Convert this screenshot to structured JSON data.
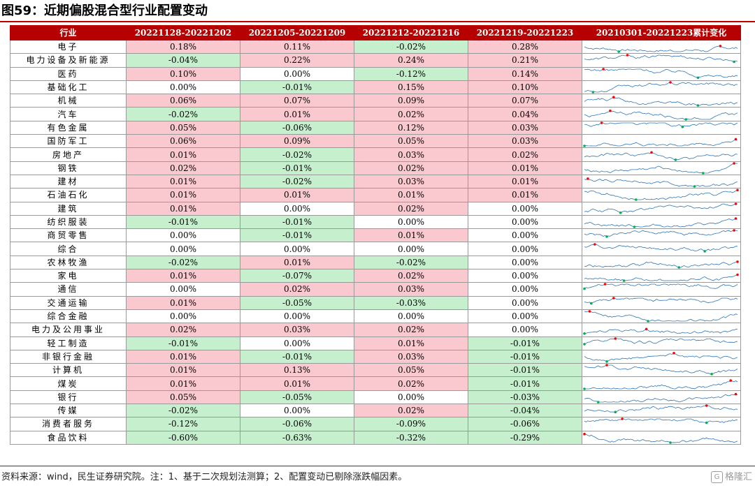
{
  "title": "图59：近期偏股混合型行业配置变动",
  "headers": [
    "行业",
    "20221128-20221202",
    "20221205-20221209",
    "20221212-20221216",
    "20221219-20221223",
    "20210301-20221223累计变化"
  ],
  "rows": [
    {
      "industry": "电子",
      "w1": "0.18%",
      "w2": "0.11%",
      "w3": "-0.02%",
      "w4": "0.28%"
    },
    {
      "industry": "电力设备及新能源",
      "w1": "-0.04%",
      "w2": "0.22%",
      "w3": "0.24%",
      "w4": "0.21%"
    },
    {
      "industry": "医药",
      "w1": "0.10%",
      "w2": "0.00%",
      "w3": "-0.12%",
      "w4": "0.14%"
    },
    {
      "industry": "基础化工",
      "w1": "0.00%",
      "w2": "-0.01%",
      "w3": "0.15%",
      "w4": "0.10%"
    },
    {
      "industry": "机械",
      "w1": "0.06%",
      "w2": "0.07%",
      "w3": "0.09%",
      "w4": "0.07%"
    },
    {
      "industry": "汽车",
      "w1": "-0.02%",
      "w2": "0.01%",
      "w3": "0.02%",
      "w4": "0.04%"
    },
    {
      "industry": "有色金属",
      "w1": "0.05%",
      "w2": "-0.06%",
      "w3": "0.12%",
      "w4": "0.03%"
    },
    {
      "industry": "国防军工",
      "w1": "0.06%",
      "w2": "0.09%",
      "w3": "0.05%",
      "w4": "0.03%"
    },
    {
      "industry": "房地产",
      "w1": "0.01%",
      "w2": "-0.02%",
      "w3": "0.03%",
      "w4": "0.02%"
    },
    {
      "industry": "钢铁",
      "w1": "0.02%",
      "w2": "-0.01%",
      "w3": "0.02%",
      "w4": "0.01%"
    },
    {
      "industry": "建材",
      "w1": "0.01%",
      "w2": "-0.02%",
      "w3": "0.03%",
      "w4": "0.01%"
    },
    {
      "industry": "石油石化",
      "w1": "0.01%",
      "w2": "0.01%",
      "w3": "0.01%",
      "w4": "0.01%"
    },
    {
      "industry": "建筑",
      "w1": "0.01%",
      "w2": "0.00%",
      "w3": "0.02%",
      "w4": "0.00%"
    },
    {
      "industry": "纺织服装",
      "w1": "-0.01%",
      "w2": "-0.01%",
      "w3": "0.00%",
      "w4": "0.00%"
    },
    {
      "industry": "商贸零售",
      "w1": "0.00%",
      "w2": "-0.01%",
      "w3": "0.01%",
      "w4": "0.00%"
    },
    {
      "industry": "综合",
      "w1": "0.00%",
      "w2": "0.00%",
      "w3": "0.00%",
      "w4": "0.00%"
    },
    {
      "industry": "农林牧渔",
      "w1": "-0.02%",
      "w2": "0.01%",
      "w3": "-0.02%",
      "w4": "0.00%"
    },
    {
      "industry": "家电",
      "w1": "0.01%",
      "w2": "-0.07%",
      "w3": "0.02%",
      "w4": "0.00%"
    },
    {
      "industry": "通信",
      "w1": "0.00%",
      "w2": "0.02%",
      "w3": "0.03%",
      "w4": "0.00%"
    },
    {
      "industry": "交通运输",
      "w1": "0.01%",
      "w2": "-0.05%",
      "w3": "-0.03%",
      "w4": "0.00%"
    },
    {
      "industry": "综合金融",
      "w1": "0.00%",
      "w2": "0.00%",
      "w3": "0.00%",
      "w4": "0.00%"
    },
    {
      "industry": "电力及公用事业",
      "w1": "0.02%",
      "w2": "0.03%",
      "w3": "0.02%",
      "w4": "0.00%"
    },
    {
      "industry": "轻工制造",
      "w1": "-0.01%",
      "w2": "0.00%",
      "w3": "0.01%",
      "w4": "-0.01%"
    },
    {
      "industry": "非银行金融",
      "w1": "0.01%",
      "w2": "-0.01%",
      "w3": "0.03%",
      "w4": "-0.01%"
    },
    {
      "industry": "计算机",
      "w1": "0.01%",
      "w2": "0.13%",
      "w3": "0.05%",
      "w4": "-0.01%"
    },
    {
      "industry": "煤炭",
      "w1": "0.01%",
      "w2": "0.01%",
      "w3": "0.02%",
      "w4": "-0.01%"
    },
    {
      "industry": "银行",
      "w1": "0.05%",
      "w2": "-0.05%",
      "w3": "0.00%",
      "w4": "-0.03%"
    },
    {
      "industry": "传媒",
      "w1": "-0.02%",
      "w2": "0.00%",
      "w3": "0.02%",
      "w4": "-0.04%"
    },
    {
      "industry": "消费者服务",
      "w1": "-0.12%",
      "w2": "-0.06%",
      "w3": "-0.09%",
      "w4": "-0.06%"
    },
    {
      "industry": "食品饮料",
      "w1": "-0.60%",
      "w2": "-0.63%",
      "w3": "-0.32%",
      "w4": "-0.29%"
    }
  ],
  "source": "资料来源：wind，民生证券研究院。注：1、基于二次规划法测算；2、配置变动已剔除涨跌幅因素。",
  "watermark": "格隆汇",
  "colors": {
    "header_bg": "#b70000",
    "positive_bg": "#f9c9cf",
    "negative_bg": "#c6efce",
    "spark_line": "#2e75b6",
    "spark_max": "#ff0000",
    "spark_min": "#00b050"
  }
}
